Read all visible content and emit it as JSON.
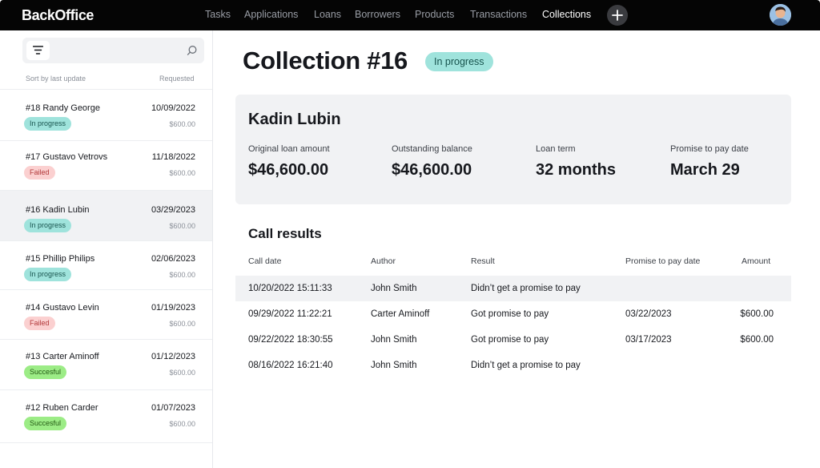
{
  "app": {
    "brand": "BackOffice",
    "nav": [
      "Tasks",
      "Applications",
      "Loans",
      "Borrowers",
      "Products",
      "Transactions",
      "Collections"
    ],
    "active_nav": "Collections",
    "add_icon": "plus-icon",
    "avatar_icon": "user-avatar"
  },
  "sidebar": {
    "filter_icon": "filter-icon",
    "search_icon": "search-icon",
    "sort_label": "Sort by last update",
    "requested_label": "Requested",
    "items": [
      {
        "title": "#18 Randy George",
        "date": "10/09/2022",
        "amount": "$600.00",
        "status": "In progress"
      },
      {
        "title": "#17 Gustavo Vetrovs",
        "date": "11/18/2022",
        "amount": "$600.00",
        "status": "Failed"
      },
      {
        "title": "#16 Kadin Lubin",
        "date": "03/29/2023",
        "amount": "$600.00",
        "status": "In progress"
      },
      {
        "title": "#15 Phillip Philips",
        "date": "02/06/2023",
        "amount": "$600.00",
        "status": "In progress"
      },
      {
        "title": "#14 Gustavo Levin",
        "date": "01/19/2023",
        "amount": "$600.00",
        "status": "Failed"
      },
      {
        "title": "#13 Carter Aminoff",
        "date": "01/12/2023",
        "amount": "$600.00",
        "status": "Succesful"
      },
      {
        "title": "#12 Ruben Carder",
        "date": "01/07/2023",
        "amount": "$600.00",
        "status": "Succesful"
      }
    ]
  },
  "main": {
    "title": "Collection #16",
    "status": "In progress",
    "borrower": "Kadin Lubin",
    "metrics": [
      {
        "label": "Original loan amount",
        "value": "$46,600.00"
      },
      {
        "label": "Outstanding balance",
        "value": "$46,600.00"
      },
      {
        "label": "Loan term",
        "value": "32 months"
      },
      {
        "label": "Promise to pay date",
        "value": "March 29"
      }
    ],
    "call_results": {
      "title": "Call results",
      "columns": [
        "Call date",
        "Author",
        "Result",
        "Promise to pay date",
        "Amount"
      ],
      "rows": [
        {
          "date": "10/20/2022 15:11:33",
          "author": "John Smith",
          "result": "Didn’t get a promise to pay",
          "promise": "",
          "amount": ""
        },
        {
          "date": "09/29/2022 11:22:21",
          "author": "Carter Aminoff",
          "result": "Got promise to pay",
          "promise": "03/22/2023",
          "amount": "$600.00"
        },
        {
          "date": "09/22/2022 18:30:55",
          "author": "John Smith",
          "result": "Got promise to pay",
          "promise": "03/17/2023",
          "amount": "$600.00"
        },
        {
          "date": "08/16/2022 16:21:40",
          "author": "John Smith",
          "result": "Didn’t get a promise to pay",
          "promise": "",
          "amount": ""
        }
      ]
    }
  },
  "colors": {
    "nav_bg": "#050505",
    "in_progress": "#9fe3dc",
    "failed": "#fbd0d0",
    "successful": "#9cec86",
    "panel": "#f1f2f4"
  }
}
